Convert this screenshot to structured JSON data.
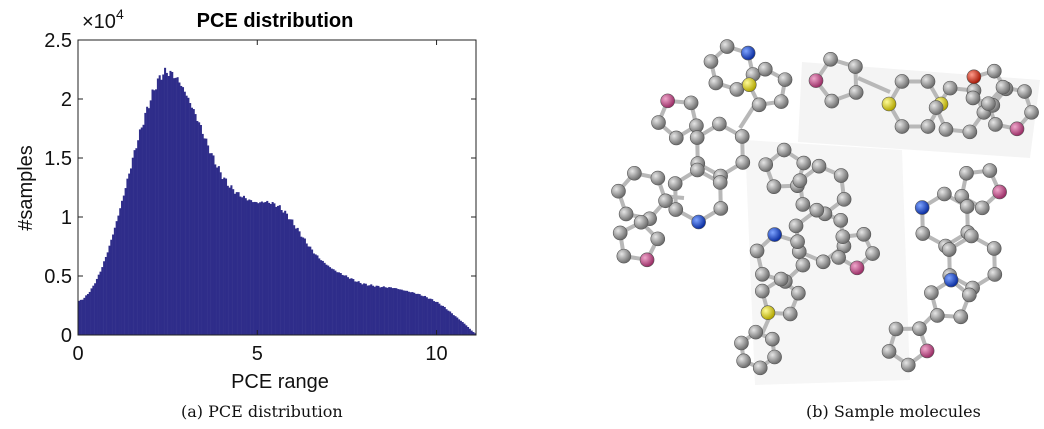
{
  "chart_data": {
    "type": "bar",
    "title": "PCE distribution",
    "xlabel": "PCE range",
    "ylabel": "#samples",
    "xlim": [
      0,
      11.1
    ],
    "ylim": [
      0,
      25000
    ],
    "x_ticks": [
      "0",
      "5",
      "10"
    ],
    "y_ticks": [
      "0",
      "0.5",
      "1",
      "1.5",
      "2",
      "2.5"
    ],
    "y_exponent_base": "×10",
    "y_exponent_power": "4",
    "bar_color": "#2f2d8a",
    "bin_width": 0.05,
    "profile_x": [
      0,
      0.2,
      0.4,
      0.6,
      0.8,
      1.0,
      1.2,
      1.4,
      1.6,
      1.8,
      2.0,
      2.2,
      2.4,
      2.6,
      2.8,
      3.0,
      3.2,
      3.4,
      3.6,
      3.8,
      4.0,
      4.2,
      4.4,
      4.6,
      4.8,
      5.0,
      5.2,
      5.4,
      5.6,
      5.8,
      6.0,
      6.2,
      6.4,
      6.6,
      6.8,
      7.0,
      7.2,
      7.4,
      7.6,
      7.8,
      8.0,
      8.2,
      8.4,
      8.6,
      8.8,
      9.0,
      9.2,
      9.4,
      9.6,
      9.8,
      10.0,
      10.2,
      10.4,
      10.6,
      10.8,
      11.0,
      11.1
    ],
    "profile_y": [
      2800,
      3200,
      4000,
      5200,
      6800,
      8800,
      11000,
      13400,
      15800,
      17900,
      19800,
      21400,
      22300,
      22200,
      21600,
      20500,
      19200,
      17800,
      16200,
      14800,
      13600,
      12700,
      12100,
      11700,
      11400,
      11200,
      11300,
      11200,
      10900,
      10300,
      9500,
      8600,
      7700,
      6900,
      6300,
      5800,
      5400,
      5100,
      4800,
      4500,
      4300,
      4200,
      4100,
      4050,
      4000,
      3850,
      3700,
      3550,
      3350,
      3100,
      2800,
      2400,
      1900,
      1400,
      900,
      300,
      100
    ]
  },
  "caption_a": "(a) PCE distribution",
  "caption_b": "(b) Sample molecules",
  "atom_colors": {
    "carbon": "#8a8a8a",
    "nitrogen": "#1f4fd6",
    "oxygen": "#c24a86",
    "sulfur": "#d8cf1c",
    "red_oxygen": "#d62b18"
  }
}
